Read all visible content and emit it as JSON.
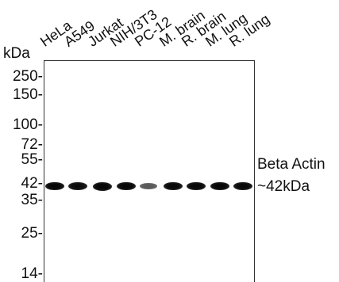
{
  "unit_label": "kDa",
  "lanes": [
    {
      "label": "HeLa",
      "band_intensity": 0.95
    },
    {
      "label": "A549",
      "band_intensity": 0.9
    },
    {
      "label": "Jurkat",
      "band_intensity": 1.0
    },
    {
      "label": "NIH/3T3",
      "band_intensity": 0.98
    },
    {
      "label": "PC-12",
      "band_intensity": 0.45
    },
    {
      "label": "M. brain",
      "band_intensity": 0.92
    },
    {
      "label": "R. brain",
      "band_intensity": 0.93
    },
    {
      "label": "M. lung",
      "band_intensity": 0.94
    },
    {
      "label": "R. lung",
      "band_intensity": 0.92
    }
  ],
  "markers": [
    "250-",
    "150-",
    "100-",
    "72-",
    "55-",
    "42-",
    "35-",
    "25-",
    "14-"
  ],
  "target": {
    "name": "Beta Actin",
    "size": "~42kDa"
  },
  "colors": {
    "band": "#0a0a0a",
    "background": "#ffffff",
    "text": "#111111"
  }
}
